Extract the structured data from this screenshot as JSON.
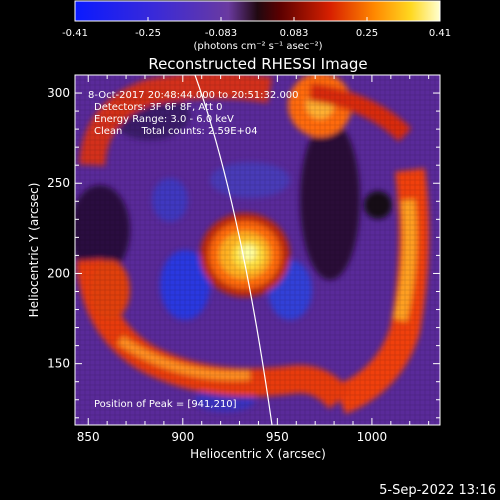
{
  "colorbar": {
    "ticks": [
      "-0.41",
      "-0.25",
      "-0.083",
      "0.083",
      "0.25",
      "0.41"
    ],
    "units": "(photons cm⁻² s⁻¹ asec⁻²)"
  },
  "image": {
    "title": "Reconstructed RHESSI Image",
    "info_lines": [
      "8-Oct-2017 20:48:44.000 to 20:51:32.000",
      "Detectors: 3F 6F 8F, Att 0",
      "Energy Range: 3.0 - 6.0 keV",
      "Clean      Total counts: 2.59E+04"
    ],
    "peak_label": "Position of Peak = [941,210]",
    "x_axis": {
      "label": "Heliocentric X (arcsec)",
      "ticks": [
        "850",
        "900",
        "950",
        "1000"
      ],
      "range": [
        843,
        1036
      ]
    },
    "y_axis": {
      "label": "Heliocentric Y (arcsec)",
      "ticks": [
        "150",
        "200",
        "250",
        "300"
      ],
      "range": [
        116,
        310
      ]
    }
  },
  "footer": {
    "date_stamp": "5-Sep-2022 13:16"
  }
}
